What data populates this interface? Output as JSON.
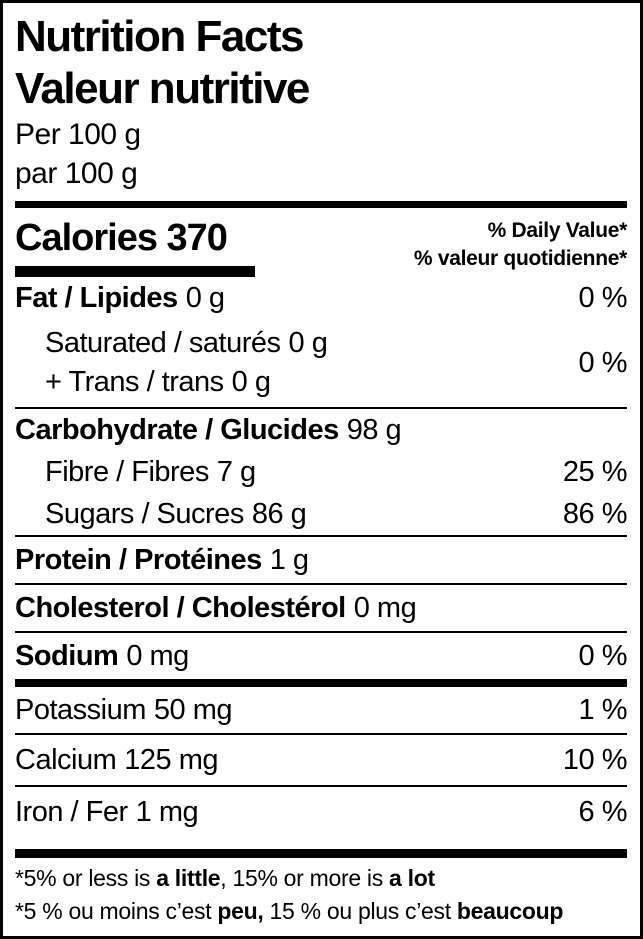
{
  "label": {
    "title_en": "Nutrition Facts",
    "title_fr": "Valeur nutritive",
    "serving_en": "Per 100 g",
    "serving_fr": "par 100 g",
    "calories": {
      "label": "Calories",
      "value": "370"
    },
    "daily_value_header": {
      "en": "% Daily Value*",
      "fr": "% valeur quotidienne*"
    },
    "rows": [
      {
        "label": "Fat / Lipides",
        "amount": "0 g",
        "dv": "0 %"
      },
      {
        "dv": "0 %",
        "lines": [
          {
            "label": "Saturated / saturés",
            "amount": "0 g"
          },
          {
            "label": "+ Trans / trans",
            "amount": "0 g"
          }
        ]
      },
      {
        "label": "Carbohydrate / Glucides",
        "amount": "98 g",
        "dv": ""
      },
      {
        "label": "Fibre / Fibres",
        "amount": "7 g",
        "dv": "25 %"
      },
      {
        "label": "Sugars / Sucres",
        "amount": "86 g",
        "dv": "86 %"
      },
      {
        "label": "Protein / Protéines",
        "amount": "1 g",
        "dv": ""
      },
      {
        "label": "Cholesterol / Cholestérol",
        "amount": "0 mg",
        "dv": ""
      },
      {
        "label": "Sodium",
        "amount": "0 mg",
        "dv": "0 %"
      },
      {
        "label": "Potassium",
        "amount": "50 mg",
        "dv": "1 %"
      },
      {
        "label": "Calcium",
        "amount": "125 mg",
        "dv": "10 %"
      },
      {
        "label": "Iron / Fer",
        "amount": "1 mg",
        "dv": "6 %"
      }
    ],
    "footnote_en": {
      "t1": "*5% or less is ",
      "b1": "a little",
      "t2": ", 15% or more is ",
      "b2": "a lot"
    },
    "footnote_fr": {
      "t1": "*5 % ou moins c’est ",
      "b1": "peu,",
      "t2": " 15 % ou plus c’est ",
      "b2": "beaucoup"
    },
    "colors": {
      "ink": "#000000",
      "background": "#ffffff"
    }
  }
}
